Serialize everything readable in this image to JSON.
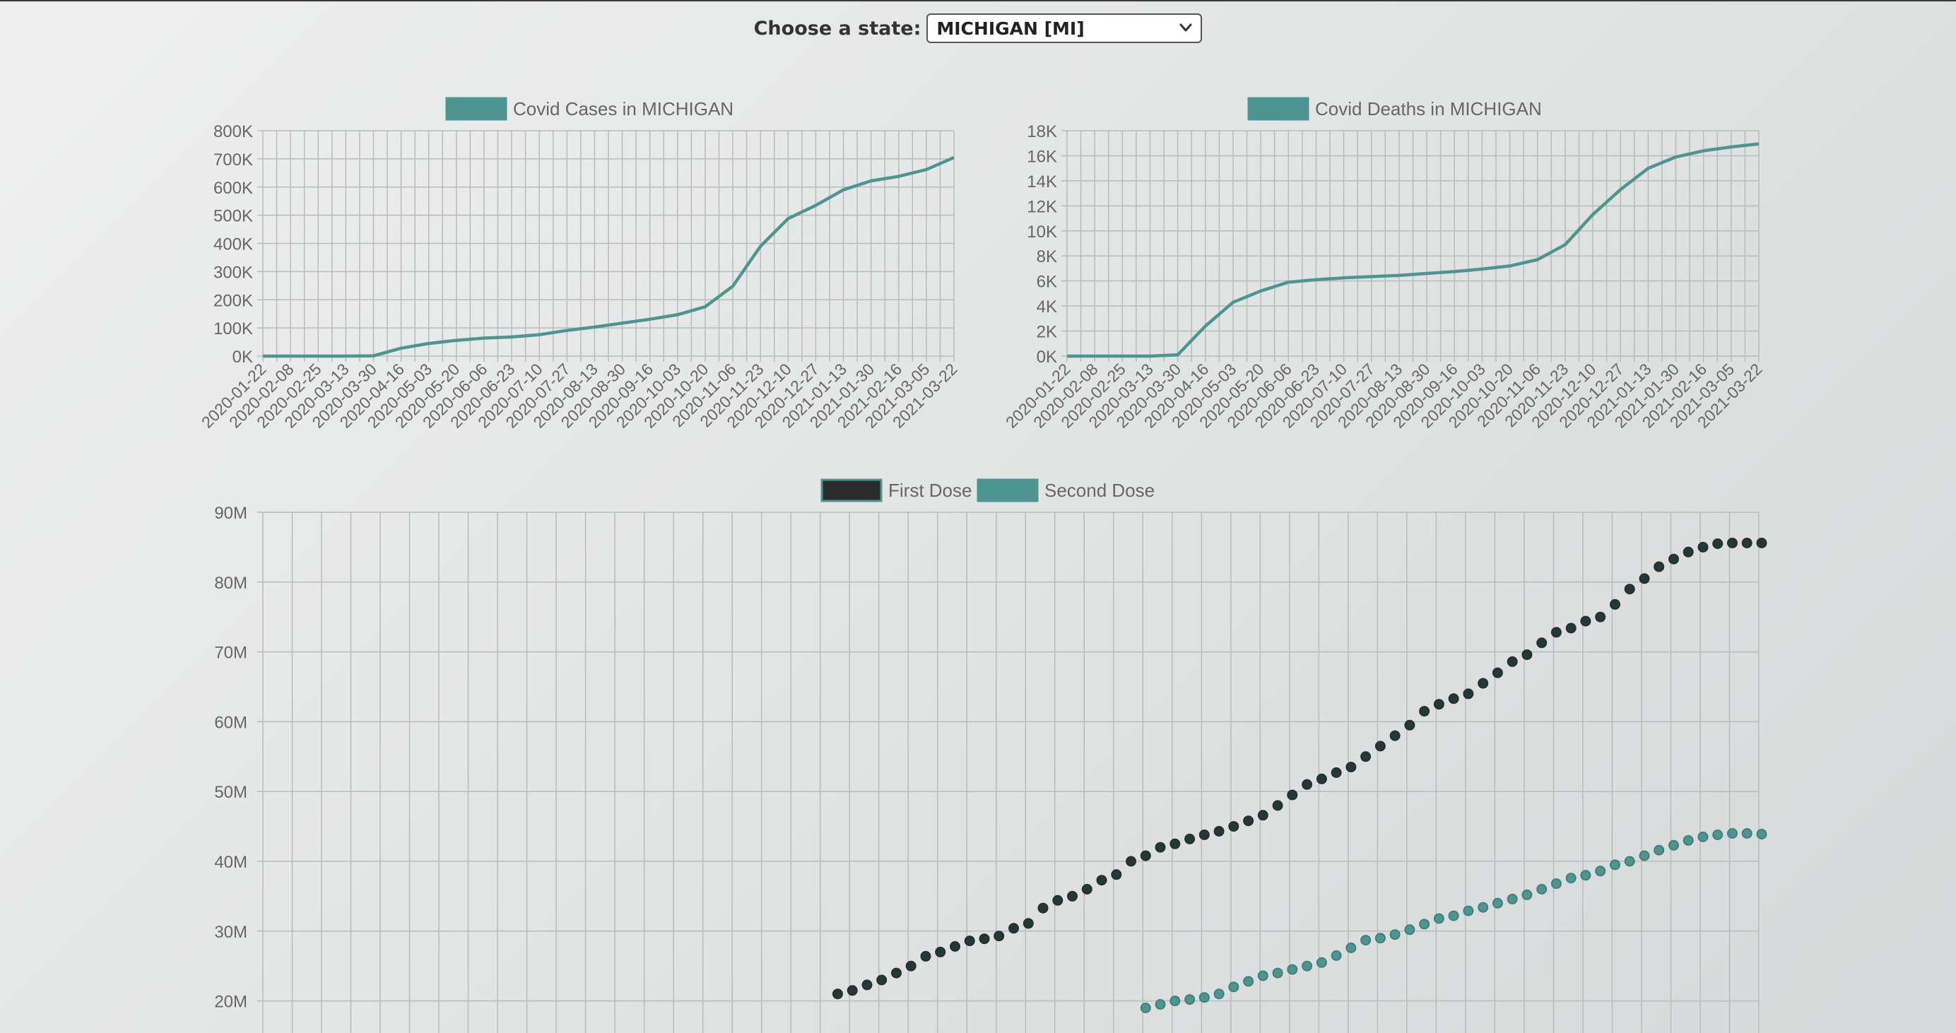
{
  "header": {
    "state_label": "Choose a state:",
    "state_options": [
      "MICHIGAN [MI]"
    ],
    "state_selected": "MICHIGAN [MI]"
  },
  "colors": {
    "teal": "#4e9592",
    "dark": "#2c2c2c",
    "grid": "#b8bbbb",
    "text": "#666666"
  },
  "chart_data": [
    {
      "type": "line",
      "title": "",
      "legend": [
        "Covid Cases in MICHIGAN"
      ],
      "xlabel": "",
      "ylabel": "",
      "x_ticks": [
        "2020-01-22",
        "2020-02-08",
        "2020-02-25",
        "2020-03-13",
        "2020-03-30",
        "2020-04-16",
        "2020-05-03",
        "2020-05-20",
        "2020-06-06",
        "2020-06-23",
        "2020-07-10",
        "2020-07-27",
        "2020-08-13",
        "2020-08-30",
        "2020-09-16",
        "2020-10-03",
        "2020-10-20",
        "2020-11-06",
        "2020-11-23",
        "2020-12-10",
        "2020-12-27",
        "2021-01-13",
        "2021-01-30",
        "2021-02-16",
        "2021-03-05",
        "2021-03-22"
      ],
      "y_ticks": [
        "0K",
        "100K",
        "200K",
        "300K",
        "400K",
        "500K",
        "600K",
        "700K",
        "800K"
      ],
      "ylim": [
        0,
        800000
      ],
      "series": [
        {
          "name": "Covid Cases in MICHIGAN",
          "values": [
            0,
            0,
            0,
            0,
            1000,
            28000,
            45000,
            56000,
            64000,
            68000,
            76000,
            91000,
            103000,
            117000,
            131000,
            147000,
            175000,
            248000,
            390000,
            488000,
            535000,
            590000,
            622000,
            638000,
            662000,
            705000
          ]
        }
      ]
    },
    {
      "type": "line",
      "title": "",
      "legend": [
        "Covid Deaths in MICHIGAN"
      ],
      "xlabel": "",
      "ylabel": "",
      "x_ticks": [
        "2020-01-22",
        "2020-02-08",
        "2020-02-25",
        "2020-03-13",
        "2020-03-30",
        "2020-04-16",
        "2020-05-03",
        "2020-05-20",
        "2020-06-06",
        "2020-06-23",
        "2020-07-10",
        "2020-07-27",
        "2020-08-13",
        "2020-08-30",
        "2020-09-16",
        "2020-10-03",
        "2020-10-20",
        "2020-11-06",
        "2020-11-23",
        "2020-12-10",
        "2020-12-27",
        "2021-01-13",
        "2021-01-30",
        "2021-02-16",
        "2021-03-05",
        "2021-03-22"
      ],
      "y_ticks": [
        "0K",
        "2K",
        "4K",
        "6K",
        "8K",
        "10K",
        "12K",
        "14K",
        "16K",
        "18K"
      ],
      "ylim": [
        0,
        18000
      ],
      "series": [
        {
          "name": "Covid Deaths in MICHIGAN",
          "values": [
            0,
            0,
            0,
            0,
            100,
            2400,
            4300,
            5200,
            5900,
            6100,
            6250,
            6350,
            6450,
            6600,
            6750,
            6950,
            7200,
            7700,
            8900,
            11300,
            13300,
            15000,
            15900,
            16400,
            16700,
            16950
          ]
        }
      ]
    },
    {
      "type": "scatter",
      "title": "",
      "legend": [
        "First Dose",
        "Second Dose"
      ],
      "xlabel": "",
      "ylabel": "",
      "x_categories": 51,
      "y_ticks": [
        "20M",
        "30M",
        "40M",
        "50M",
        "60M",
        "70M",
        "80M",
        "90M"
      ],
      "ylim": [
        0,
        90000000
      ],
      "visible_y_range": [
        20000000,
        90000000
      ],
      "series": [
        {
          "name": "First Dose",
          "points_per_category": 2,
          "start_category": 17,
          "values_millions": [
            21.0,
            21.5,
            22.3,
            23.0,
            24.0,
            25.0,
            26.4,
            27.0,
            27.8,
            28.6,
            28.9,
            29.3,
            30.4,
            31.1,
            33.3,
            34.4,
            35.0,
            36.0,
            37.3,
            38.1,
            40.0,
            40.8,
            42.0,
            42.5,
            43.2,
            43.8,
            44.3,
            45.0,
            45.8,
            46.6,
            48.0,
            49.5,
            51.0,
            51.8,
            52.7,
            53.5,
            55.0,
            56.5,
            58.0,
            59.5,
            61.5,
            62.5,
            63.3,
            64.0,
            65.5,
            67.0,
            68.6,
            69.6,
            71.3,
            72.8,
            73.4,
            74.4,
            75.0,
            76.8,
            79.0,
            80.5,
            82.2,
            83.3,
            84.3,
            85.0,
            85.5,
            85.6,
            85.6,
            85.6
          ],
          "first_point_category_offset": 0
        },
        {
          "name": "Second Dose",
          "points_per_category": 2,
          "start_category": 30,
          "values_millions": [
            19.0,
            19.5,
            20.0,
            20.2,
            20.5,
            21.0,
            22.0,
            22.8,
            23.6,
            24.0,
            24.5,
            25.0,
            25.5,
            26.5,
            27.6,
            28.7,
            29.0,
            29.5,
            30.2,
            31.0,
            31.8,
            32.2,
            32.9,
            33.4,
            34.0,
            34.6,
            35.2,
            36.0,
            36.8,
            37.6,
            38.0,
            38.6,
            39.5,
            40.0,
            40.8,
            41.6,
            42.3,
            43.0,
            43.5,
            43.8,
            44.0,
            44.0,
            43.9
          ],
          "first_point_category_offset": 0
        }
      ]
    }
  ]
}
